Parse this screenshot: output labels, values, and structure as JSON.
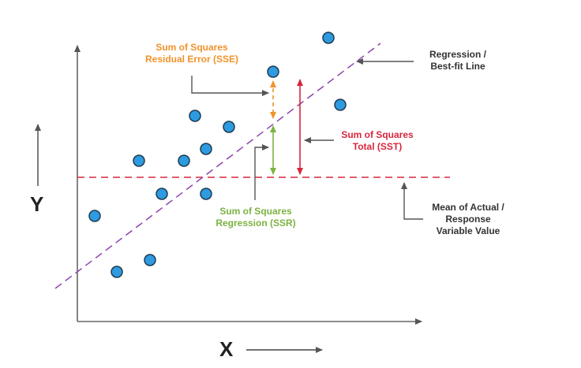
{
  "axes": {
    "x_label": "X",
    "y_label": "Y"
  },
  "annotations": {
    "sse": {
      "line1": "Sum of Squares",
      "line2": "Residual Error (SSE)",
      "color": "#f0932b"
    },
    "sst": {
      "line1": "Sum of Squares",
      "line2": "Total (SST)",
      "color": "#d7263d"
    },
    "ssr": {
      "line1": "Sum of Squares",
      "line2": "Regression (SSR)",
      "color": "#7cb342"
    },
    "regression_line": {
      "line1": "Regression /",
      "line2": "Best-fit Line",
      "color": "#8e44ad"
    },
    "mean_line": {
      "line1": "Mean of Actual /",
      "line2": "Response",
      "line3": "Variable Value",
      "color": "#d7263d"
    }
  },
  "colors": {
    "point_fill": "#2e9be0",
    "point_stroke": "#1d3a52",
    "axis": "#666666",
    "label_text": "#333333"
  }
}
